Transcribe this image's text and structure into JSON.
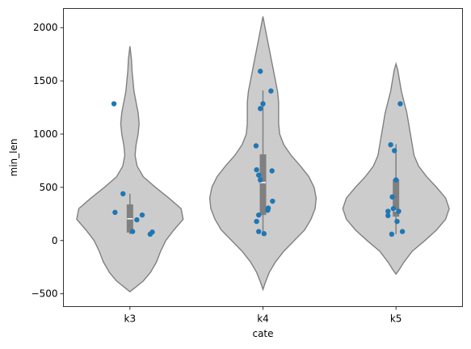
{
  "chart_data": {
    "type": "violin",
    "xlabel": "cate",
    "ylabel": "min_len",
    "ylim": [
      -620,
      2180
    ],
    "yticks": [
      -500,
      0,
      500,
      1000,
      1500,
      2000
    ],
    "ytick_labels": [
      "−500",
      "0",
      "500",
      "1000",
      "1500",
      "2000"
    ],
    "categories": [
      "k3",
      "k4",
      "k5"
    ],
    "colors": {
      "violin_fill": "#cccccc",
      "violin_edge": "#808080",
      "box": "#808080",
      "median": "#ffffff",
      "points": "#1f77b4"
    },
    "groups": [
      {
        "name": "k3",
        "summary": {
          "min": 60,
          "q1": 75,
          "median": 205,
          "q3": 340,
          "max": 440
        },
        "points": [
          {
            "x": -0.3,
            "y": 1285
          },
          {
            "x": -0.13,
            "y": 440
          },
          {
            "x": -0.28,
            "y": 265
          },
          {
            "x": 0.23,
            "y": 240
          },
          {
            "x": 0.13,
            "y": 195
          },
          {
            "x": 0.05,
            "y": 85
          },
          {
            "x": 0.42,
            "y": 80
          },
          {
            "x": 0.38,
            "y": 60
          }
        ],
        "density": [
          [
            -480,
            0
          ],
          [
            -450,
            0.04
          ],
          [
            -380,
            0.13
          ],
          [
            -300,
            0.2
          ],
          [
            -200,
            0.26
          ],
          [
            -100,
            0.3
          ],
          [
            0,
            0.35
          ],
          [
            100,
            0.43
          ],
          [
            200,
            0.52
          ],
          [
            300,
            0.5
          ],
          [
            400,
            0.38
          ],
          [
            500,
            0.25
          ],
          [
            600,
            0.13
          ],
          [
            700,
            0.07
          ],
          [
            800,
            0.05
          ],
          [
            900,
            0.06
          ],
          [
            1000,
            0.08
          ],
          [
            1100,
            0.09
          ],
          [
            1200,
            0.08
          ],
          [
            1300,
            0.06
          ],
          [
            1400,
            0.04
          ],
          [
            1500,
            0.03
          ],
          [
            1600,
            0.02
          ],
          [
            1700,
            0.015
          ],
          [
            1825,
            0
          ]
        ]
      },
      {
        "name": "k4",
        "summary": {
          "min": 60,
          "q1": 240,
          "median": 545,
          "q3": 810,
          "max": 1410
        },
        "points": [
          {
            "x": -0.05,
            "y": 1590
          },
          {
            "x": 0.15,
            "y": 1405
          },
          {
            "x": 0.0,
            "y": 1285
          },
          {
            "x": -0.05,
            "y": 1240
          },
          {
            "x": -0.13,
            "y": 890
          },
          {
            "x": -0.12,
            "y": 665
          },
          {
            "x": 0.17,
            "y": 655
          },
          {
            "x": -0.08,
            "y": 615
          },
          {
            "x": -0.05,
            "y": 570
          },
          {
            "x": 0.18,
            "y": 370
          },
          {
            "x": 0.1,
            "y": 305
          },
          {
            "x": 0.09,
            "y": 285
          },
          {
            "x": -0.08,
            "y": 240
          },
          {
            "x": -0.12,
            "y": 180
          },
          {
            "x": -0.08,
            "y": 85
          },
          {
            "x": 0.02,
            "y": 65
          }
        ],
        "density": [
          [
            -460,
            0
          ],
          [
            -400,
            0.02
          ],
          [
            -300,
            0.06
          ],
          [
            -200,
            0.12
          ],
          [
            -100,
            0.2
          ],
          [
            0,
            0.3
          ],
          [
            100,
            0.4
          ],
          [
            200,
            0.46
          ],
          [
            300,
            0.5
          ],
          [
            400,
            0.51
          ],
          [
            500,
            0.49
          ],
          [
            600,
            0.44
          ],
          [
            700,
            0.36
          ],
          [
            800,
            0.27
          ],
          [
            900,
            0.2
          ],
          [
            1000,
            0.16
          ],
          [
            1100,
            0.15
          ],
          [
            1200,
            0.15
          ],
          [
            1300,
            0.15
          ],
          [
            1400,
            0.14
          ],
          [
            1500,
            0.12
          ],
          [
            1600,
            0.1
          ],
          [
            1700,
            0.08
          ],
          [
            1800,
            0.06
          ],
          [
            1900,
            0.04
          ],
          [
            2000,
            0.02
          ],
          [
            2105,
            0
          ]
        ]
      },
      {
        "name": "k5",
        "summary": {
          "min": 60,
          "q1": 225,
          "median": 280,
          "q3": 575,
          "max": 905
        },
        "points": [
          {
            "x": 0.08,
            "y": 1285
          },
          {
            "x": -0.1,
            "y": 900
          },
          {
            "x": -0.03,
            "y": 845
          },
          {
            "x": 0.0,
            "y": 570
          },
          {
            "x": -0.07,
            "y": 410
          },
          {
            "x": -0.15,
            "y": 275
          },
          {
            "x": -0.05,
            "y": 300
          },
          {
            "x": 0.05,
            "y": 275
          },
          {
            "x": -0.15,
            "y": 235
          },
          {
            "x": 0.02,
            "y": 180
          },
          {
            "x": 0.12,
            "y": 85
          },
          {
            "x": -0.08,
            "y": 60
          }
        ],
        "density": [
          [
            -315,
            0
          ],
          [
            -280,
            0.03
          ],
          [
            -200,
            0.09
          ],
          [
            -100,
            0.18
          ],
          [
            0,
            0.32
          ],
          [
            100,
            0.45
          ],
          [
            200,
            0.55
          ],
          [
            300,
            0.59
          ],
          [
            400,
            0.55
          ],
          [
            500,
            0.45
          ],
          [
            600,
            0.34
          ],
          [
            700,
            0.25
          ],
          [
            800,
            0.2
          ],
          [
            900,
            0.18
          ],
          [
            1000,
            0.16
          ],
          [
            1100,
            0.14
          ],
          [
            1200,
            0.12
          ],
          [
            1300,
            0.09
          ],
          [
            1400,
            0.06
          ],
          [
            1500,
            0.04
          ],
          [
            1600,
            0.02
          ],
          [
            1660,
            0
          ]
        ]
      }
    ]
  }
}
